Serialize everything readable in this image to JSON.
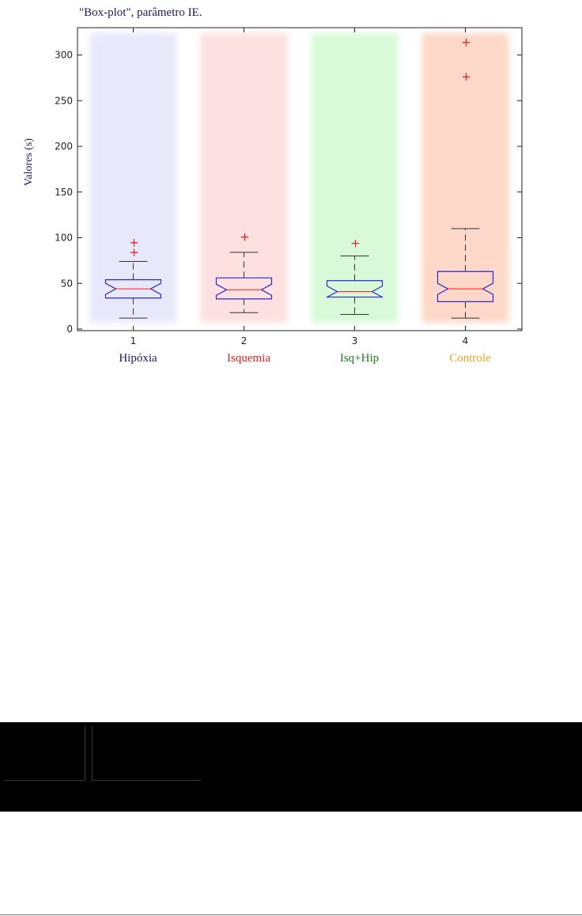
{
  "title": "\"Box-plot\", parâmetro IE.",
  "chart_data": {
    "type": "boxplot",
    "title": "\"Box-plot\", parâmetro IE.",
    "ylabel": "Valores (s)",
    "xlabel": "",
    "ylim": [
      0,
      330
    ],
    "y_ticks": [
      0,
      50,
      100,
      150,
      200,
      250,
      300
    ],
    "categories": [
      "1",
      "2",
      "3",
      "4"
    ],
    "group_labels": [
      "Hipóxia",
      "Isquemia",
      "Isq+Hip",
      "Controle"
    ],
    "group_colors": [
      "#1a1a6e",
      "#d42020",
      "#1e7a1e",
      "#f0a020"
    ],
    "band_colors": [
      "#e8e8fb",
      "#fde0e0",
      "#d8fad8",
      "#fdd8c8"
    ],
    "box_color": "#2a2ad0",
    "median_color": "#ff3030",
    "outlier_color": "#e02020",
    "boxes": [
      {
        "name": "Hipóxia",
        "whisker_low": 12,
        "q1": 34,
        "median": 44,
        "q3": 54,
        "whisker_high": 74,
        "outliers": [
          84,
          95
        ]
      },
      {
        "name": "Isquemia",
        "whisker_low": 18,
        "q1": 33,
        "median": 43,
        "q3": 56,
        "whisker_high": 84,
        "outliers": [
          101
        ]
      },
      {
        "name": "Isq+Hip",
        "whisker_low": 16,
        "q1": 35,
        "median": 41,
        "q3": 53,
        "whisker_high": 80,
        "outliers": [
          94
        ]
      },
      {
        "name": "Controle",
        "whisker_low": 12,
        "q1": 30,
        "median": 44,
        "q3": 63,
        "whisker_high": 110,
        "outliers": [
          276,
          314
        ]
      }
    ]
  }
}
